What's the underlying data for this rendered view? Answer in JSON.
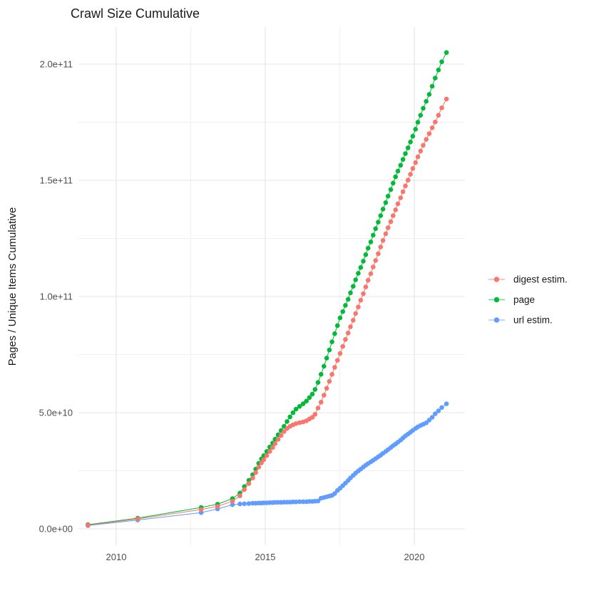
{
  "title": "Crawl Size Cumulative",
  "y_axis": {
    "title": "Pages / Unique Items Cumulative",
    "ticks": [
      {
        "label": "0.0e+00",
        "value": 0
      },
      {
        "label": "5.0e+10",
        "value": 50
      },
      {
        "label": "1.0e+11",
        "value": 100
      },
      {
        "label": "1.5e+11",
        "value": 150
      },
      {
        "label": "2.0e+11",
        "value": 200
      }
    ],
    "minor_values": [
      25,
      75,
      125,
      175
    ]
  },
  "x_axis": {
    "title": "",
    "ticks": [
      {
        "label": "2010",
        "value": 2010
      },
      {
        "label": "2015",
        "value": 2015
      },
      {
        "label": "2020",
        "value": 2020
      }
    ],
    "minor_values": [
      2012.5,
      2017.5
    ]
  },
  "legend": {
    "position": "right",
    "items": [
      {
        "label": "digest estim.",
        "color": "#F8766D"
      },
      {
        "label": "page",
        "color": "#00BA38"
      },
      {
        "label": "url estim.",
        "color": "#619CFF"
      }
    ]
  },
  "colors": {
    "digest": "#F8766D",
    "page": "#00BA38",
    "url": "#619CFF",
    "grid_major": "#e4e4e4",
    "grid_minor": "#f0f0f0",
    "tick_text": "#4d4d4d",
    "title_text": "#1a1a1a"
  },
  "chart_data": {
    "type": "line",
    "title": "Crawl Size Cumulative",
    "xlabel": "",
    "ylabel": "Pages / Unique Items Cumulative",
    "x_unit": "year (decimal, one point per crawl)",
    "y_unit": "items cumulative, billions (1e9)",
    "xlim": [
      2008.7,
      2021.8
    ],
    "ylim_billions": [
      -9,
      215
    ],
    "grid": true,
    "legend_position": "right",
    "marker": "point",
    "x": [
      2009.05,
      2010.72,
      2012.85,
      2013.4,
      2013.9,
      2014.15,
      2014.3,
      2014.45,
      2014.58,
      2014.68,
      2014.78,
      2014.87,
      2014.95,
      2015.05,
      2015.15,
      2015.25,
      2015.33,
      2015.43,
      2015.53,
      2015.63,
      2015.73,
      2015.83,
      2015.93,
      2016.03,
      2016.15,
      2016.27,
      2016.38,
      2016.48,
      2016.58,
      2016.67,
      2016.77,
      2016.87,
      2016.97,
      2017.06,
      2017.15,
      2017.24,
      2017.33,
      2017.42,
      2017.51,
      2017.6,
      2017.69,
      2017.78,
      2017.86,
      2017.95,
      2018.03,
      2018.12,
      2018.2,
      2018.29,
      2018.37,
      2018.45,
      2018.54,
      2018.62,
      2018.7,
      2018.79,
      2018.87,
      2018.95,
      2019.04,
      2019.12,
      2019.21,
      2019.29,
      2019.37,
      2019.45,
      2019.54,
      2019.62,
      2019.7,
      2019.79,
      2019.87,
      2019.95,
      2020.04,
      2020.12,
      2020.21,
      2020.3,
      2020.4,
      2020.5,
      2020.6,
      2020.7,
      2020.81,
      2020.92,
      2021.08
    ],
    "series": [
      {
        "name": "digest estim.",
        "color": "#F8766D",
        "values_billions": [
          1.6,
          4.3,
          8.3,
          9.7,
          11.9,
          14.2,
          16.9,
          19.5,
          21.9,
          24.2,
          26.6,
          28.4,
          29.8,
          31.5,
          33.3,
          35.0,
          36.7,
          38.5,
          40.2,
          41.9,
          43.2,
          44.1,
          44.8,
          45.3,
          45.7,
          46.0,
          46.5,
          47.3,
          48.0,
          49.3,
          52.0,
          54.5,
          57.5,
          60.5,
          63.5,
          66.5,
          69.5,
          72.5,
          75.5,
          78.5,
          81.5,
          84.3,
          87.0,
          89.8,
          92.7,
          95.5,
          98.4,
          101.2,
          104.1,
          107.0,
          109.8,
          112.7,
          115.5,
          118.4,
          121.3,
          124.1,
          127.0,
          129.6,
          132.2,
          134.8,
          137.3,
          139.9,
          142.5,
          145.1,
          147.6,
          150.1,
          152.6,
          155.1,
          157.6,
          160.1,
          162.6,
          165.1,
          167.6,
          170.1,
          172.6,
          175.1,
          178.0,
          181.2,
          185.0
        ]
      },
      {
        "name": "page",
        "color": "#00BA38",
        "values_billions": [
          1.8,
          4.6,
          9.2,
          10.6,
          13.0,
          15.4,
          18.2,
          20.9,
          23.3,
          25.7,
          28.2,
          30.1,
          31.5,
          33.3,
          35.2,
          36.9,
          38.6,
          40.5,
          42.3,
          44.1,
          46.2,
          48.2,
          50.0,
          51.5,
          52.7,
          53.8,
          55.0,
          56.5,
          58.0,
          60.0,
          63.0,
          66.5,
          70.0,
          73.5,
          77.0,
          80.5,
          84.0,
          87.5,
          90.8,
          93.5,
          96.2,
          98.8,
          101.6,
          104.4,
          107.2,
          110.0,
          112.5,
          115.2,
          118.0,
          120.8,
          123.5,
          126.4,
          129.2,
          132.0,
          134.8,
          137.6,
          140.4,
          143.2,
          146.0,
          148.8,
          151.5,
          154.0,
          156.5,
          159.0,
          161.5,
          164.0,
          166.5,
          169.0,
          172.0,
          175.0,
          178.0,
          181.0,
          184.0,
          187.0,
          190.5,
          194.0,
          197.5,
          201.0,
          205.0
        ]
      },
      {
        "name": "url estim.",
        "color": "#619CFF",
        "values_billions": [
          1.4,
          3.8,
          7.0,
          8.6,
          10.4,
          10.7,
          10.8,
          10.9,
          11.0,
          11.0,
          11.1,
          11.1,
          11.2,
          11.2,
          11.3,
          11.3,
          11.4,
          11.4,
          11.4,
          11.5,
          11.5,
          11.5,
          11.6,
          11.6,
          11.7,
          11.7,
          11.7,
          11.8,
          11.8,
          11.9,
          12.0,
          13.2,
          13.5,
          13.8,
          14.1,
          14.4,
          15.2,
          16.5,
          17.5,
          18.6,
          19.7,
          20.8,
          21.9,
          23.0,
          24.0,
          24.9,
          25.7,
          26.6,
          27.4,
          28.1,
          28.8,
          29.5,
          30.2,
          31.0,
          31.7,
          32.5,
          33.3,
          34.1,
          35.0,
          35.8,
          36.5,
          37.3,
          38.2,
          39.1,
          40.0,
          40.8,
          41.6,
          42.4,
          43.2,
          43.9,
          44.5,
          45.0,
          45.6,
          46.8,
          48.0,
          49.5,
          50.8,
          52.2,
          53.8
        ]
      }
    ]
  }
}
